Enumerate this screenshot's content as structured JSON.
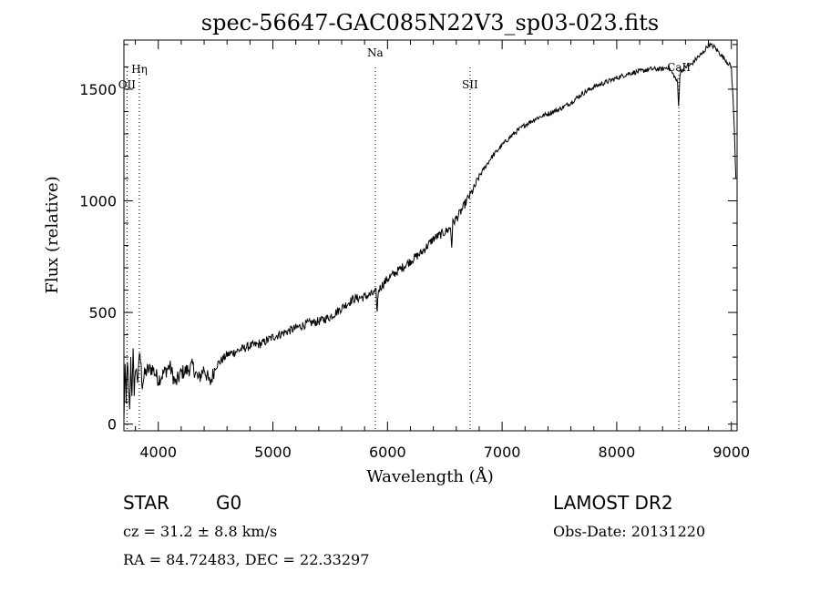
{
  "chart_data": {
    "type": "line",
    "title": "spec-56647-GAC085N22V3_sp03-023.fits",
    "xlabel": "Wavelength (Å)",
    "ylabel": "Flux (relative)",
    "xlim": [
      3700,
      9050
    ],
    "ylim": [
      -30,
      1720
    ],
    "x_ticks": [
      4000,
      5000,
      6000,
      7000,
      8000,
      9000
    ],
    "y_ticks": [
      0,
      500,
      1000,
      1500
    ],
    "grid": false,
    "series": [
      {
        "x": [
          3700,
          3710,
          3720,
          3730,
          3740,
          3750,
          3760,
          3770,
          3780,
          3790,
          3800,
          3820,
          3840,
          3860,
          3880,
          3900,
          3950,
          4000,
          4050,
          4100,
          4150,
          4200,
          4250,
          4300,
          4350,
          4400,
          4450,
          4500,
          4600,
          4700,
          4800,
          4900,
          5000,
          5100,
          5200,
          5300,
          5400,
          5500,
          5600,
          5700,
          5800,
          5850,
          5900,
          5910,
          5920,
          5950,
          6000,
          6100,
          6200,
          6300,
          6400,
          6500,
          6550,
          6560,
          6570,
          6600,
          6650,
          6700,
          6750,
          6800,
          6850,
          6900,
          7000,
          7100,
          7200,
          7300,
          7400,
          7500,
          7600,
          7700,
          7800,
          7900,
          8000,
          8100,
          8200,
          8300,
          8400,
          8450,
          8500,
          8530,
          8540,
          8550,
          8560,
          8600,
          8650,
          8700,
          8750,
          8800,
          8850,
          8900,
          8950,
          9000,
          9020,
          9040
        ],
        "y": [
          10,
          260,
          80,
          300,
          150,
          50,
          280,
          120,
          360,
          100,
          260,
          200,
          320,
          180,
          220,
          240,
          250,
          200,
          230,
          260,
          180,
          230,
          240,
          260,
          200,
          250,
          180,
          260,
          310,
          330,
          350,
          360,
          390,
          410,
          430,
          450,
          460,
          480,
          520,
          560,
          570,
          580,
          590,
          500,
          600,
          620,
          650,
          690,
          730,
          770,
          830,
          860,
          880,
          800,
          900,
          920,
          960,
          1010,
          1050,
          1110,
          1150,
          1190,
          1250,
          1300,
          1340,
          1370,
          1390,
          1410,
          1440,
          1480,
          1510,
          1530,
          1550,
          1570,
          1580,
          1590,
          1590,
          1600,
          1560,
          1530,
          1420,
          1560,
          1580,
          1600,
          1610,
          1640,
          1660,
          1700,
          1690,
          1660,
          1630,
          1600,
          1400,
          1100
        ]
      }
    ],
    "lines": [
      {
        "label": "Hη",
        "x": 3835
      },
      {
        "label": "OII",
        "x": 3727
      },
      {
        "label": "Na",
        "x": 5893
      },
      {
        "label": "SII",
        "x": 6720
      },
      {
        "label": "CaII",
        "x": 8542
      }
    ]
  },
  "info": {
    "class_text": "STAR",
    "subclass_text": "G0",
    "survey_text": "LAMOST DR2",
    "cz_text": "cz = 31.2 ± 8.8 km/s",
    "obs_date_text": "Obs-Date: 20131220",
    "radec_text": "RA =  84.72483, DEC =  22.33297"
  }
}
